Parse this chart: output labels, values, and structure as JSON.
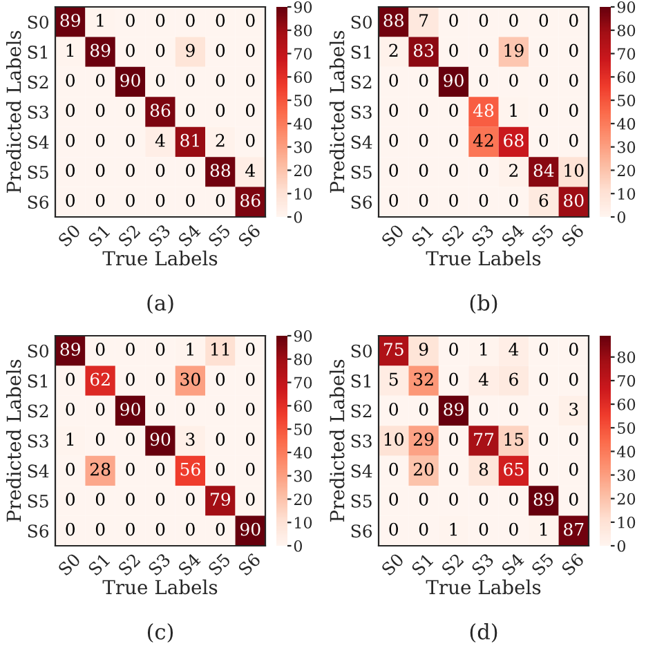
{
  "chart_data": [
    {
      "type": "heatmap",
      "title": "(a)",
      "xlabel": "True Labels",
      "ylabel": "Predicted Labels",
      "categories": [
        "S0",
        "S1",
        "S2",
        "S3",
        "S4",
        "S5",
        "S6"
      ],
      "y_categories": [
        "S0",
        "S1",
        "S2",
        "S3",
        "S4",
        "S5",
        "S6"
      ],
      "cells": [
        [
          89,
          1,
          0,
          0,
          0,
          0,
          0
        ],
        [
          1,
          89,
          0,
          0,
          9,
          0,
          0
        ],
        [
          0,
          0,
          90,
          0,
          0,
          0,
          0
        ],
        [
          0,
          0,
          0,
          86,
          0,
          0,
          0
        ],
        [
          0,
          0,
          0,
          4,
          81,
          2,
          0
        ],
        [
          0,
          0,
          0,
          0,
          0,
          88,
          4
        ],
        [
          0,
          0,
          0,
          0,
          0,
          0,
          86
        ]
      ],
      "clim": [
        0,
        90
      ],
      "cticks": [
        0,
        10,
        20,
        30,
        40,
        50,
        60,
        70,
        80,
        90
      ],
      "data_labels": true
    },
    {
      "type": "heatmap",
      "title": "(b)",
      "xlabel": "True Labels",
      "ylabel": "Predicted Labels",
      "categories": [
        "S0",
        "S1",
        "S2",
        "S3",
        "S4",
        "S5",
        "S6"
      ],
      "y_categories": [
        "S0",
        "S1",
        "S2",
        "S3",
        "S4",
        "S5",
        "S6"
      ],
      "cells": [
        [
          88,
          7,
          0,
          0,
          0,
          0,
          0
        ],
        [
          2,
          83,
          0,
          0,
          19,
          0,
          0
        ],
        [
          0,
          0,
          90,
          0,
          0,
          0,
          0
        ],
        [
          0,
          0,
          0,
          48,
          1,
          0,
          0
        ],
        [
          0,
          0,
          0,
          42,
          68,
          0,
          0
        ],
        [
          0,
          0,
          0,
          0,
          2,
          84,
          10
        ],
        [
          0,
          0,
          0,
          0,
          0,
          6,
          80
        ]
      ],
      "clim": [
        0,
        90
      ],
      "cticks": [
        0,
        10,
        20,
        30,
        40,
        50,
        60,
        70,
        80,
        90
      ],
      "data_labels": true
    },
    {
      "type": "heatmap",
      "title": "(c)",
      "xlabel": "True Labels",
      "ylabel": "Predicted Labels",
      "categories": [
        "S0",
        "S1",
        "S2",
        "S3",
        "S4",
        "S5",
        "S6"
      ],
      "y_categories": [
        "S0",
        "S1",
        "S2",
        "S3",
        "S4",
        "S5",
        "S6"
      ],
      "cells": [
        [
          89,
          0,
          0,
          0,
          1,
          11,
          0
        ],
        [
          0,
          62,
          0,
          0,
          30,
          0,
          0
        ],
        [
          0,
          0,
          90,
          0,
          0,
          0,
          0
        ],
        [
          1,
          0,
          0,
          90,
          3,
          0,
          0
        ],
        [
          0,
          28,
          0,
          0,
          56,
          0,
          0
        ],
        [
          0,
          0,
          0,
          0,
          0,
          79,
          0
        ],
        [
          0,
          0,
          0,
          0,
          0,
          0,
          90
        ]
      ],
      "clim": [
        0,
        90
      ],
      "cticks": [
        0,
        10,
        20,
        30,
        40,
        50,
        60,
        70,
        80,
        90
      ],
      "data_labels": true
    },
    {
      "type": "heatmap",
      "title": "(d)",
      "xlabel": "True Labels",
      "ylabel": "Predicted Labels",
      "categories": [
        "S0",
        "S1",
        "S2",
        "S3",
        "S4",
        "S5",
        "S6"
      ],
      "y_categories": [
        "S0",
        "S1",
        "S2",
        "S3",
        "S4",
        "S5",
        "S6"
      ],
      "cells": [
        [
          75,
          9,
          0,
          1,
          4,
          0,
          0
        ],
        [
          5,
          32,
          0,
          4,
          6,
          0,
          0
        ],
        [
          0,
          0,
          89,
          0,
          0,
          0,
          3
        ],
        [
          10,
          29,
          0,
          77,
          15,
          0,
          0
        ],
        [
          0,
          20,
          0,
          8,
          65,
          0,
          0
        ],
        [
          0,
          0,
          0,
          0,
          0,
          89,
          0
        ],
        [
          0,
          0,
          1,
          0,
          0,
          1,
          87
        ]
      ],
      "clim": [
        0,
        89
      ],
      "cticks": [
        0,
        10,
        20,
        30,
        40,
        50,
        60,
        70,
        80
      ],
      "data_labels": true
    }
  ]
}
